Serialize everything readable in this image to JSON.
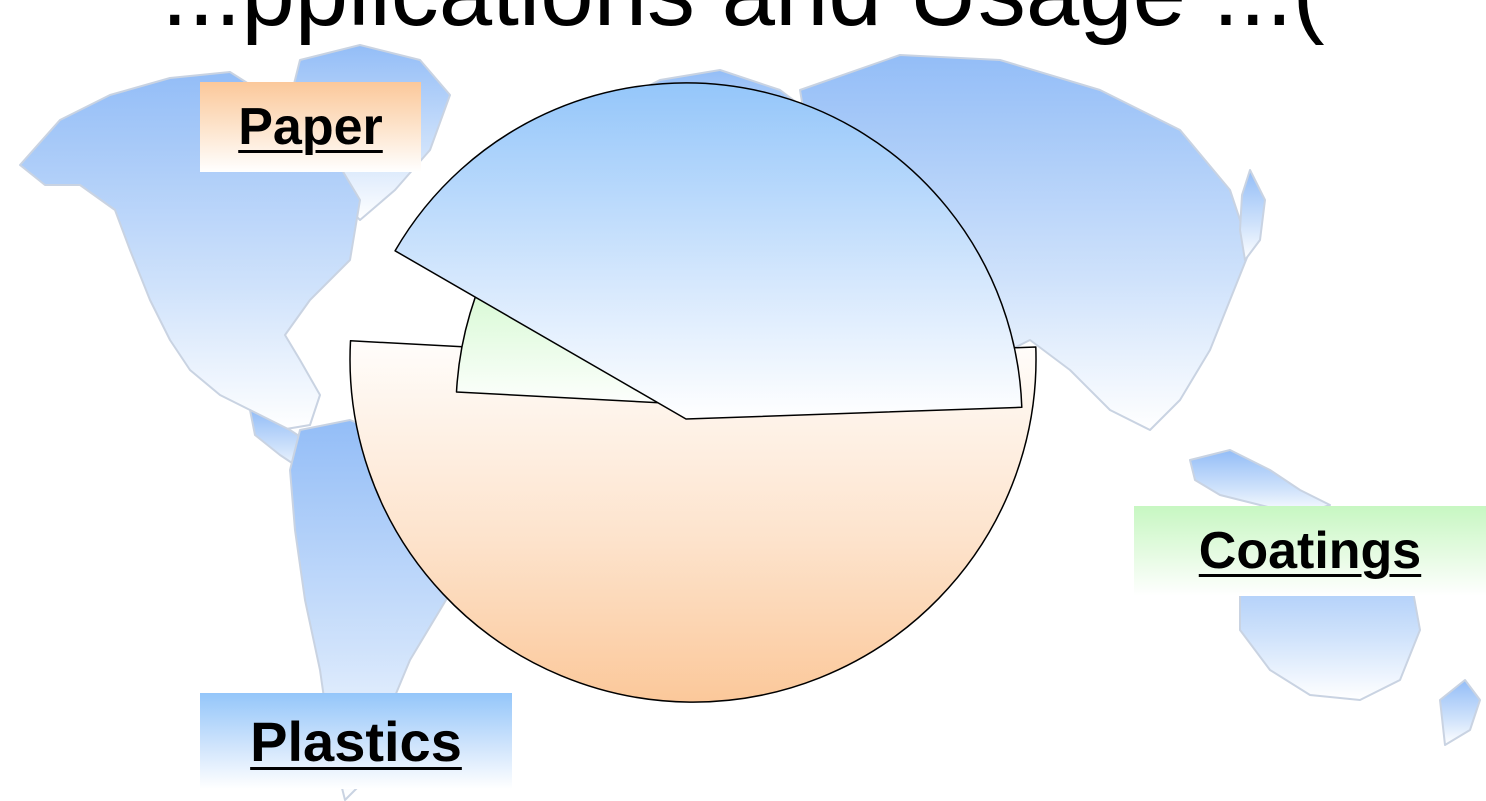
{
  "title": {
    "visible_text": "...pplications and Usage ...("
  },
  "colors": {
    "map_fill_top": "#93bdf7",
    "map_fill_bottom": "#ffffff",
    "map_stroke": "#c9d3e2",
    "paper": "#fbc89a",
    "plastics": "#94c6fa",
    "coatings": "#c7f7c2",
    "slice_stroke": "#000000"
  },
  "chart_data": {
    "type": "pie",
    "start_angle_deg": -2,
    "direction": "clockwise",
    "slices": [
      {
        "label": "Paper",
        "share": 0.514,
        "color_key": "paper"
      },
      {
        "label": "Coatings",
        "share": 0.075,
        "color_key": "coatings"
      },
      {
        "label": "Plastics",
        "share": 0.411,
        "color_key": "plastics"
      }
    ],
    "legend": "labels placed beside slices on gradient boxes",
    "background": "world map"
  }
}
